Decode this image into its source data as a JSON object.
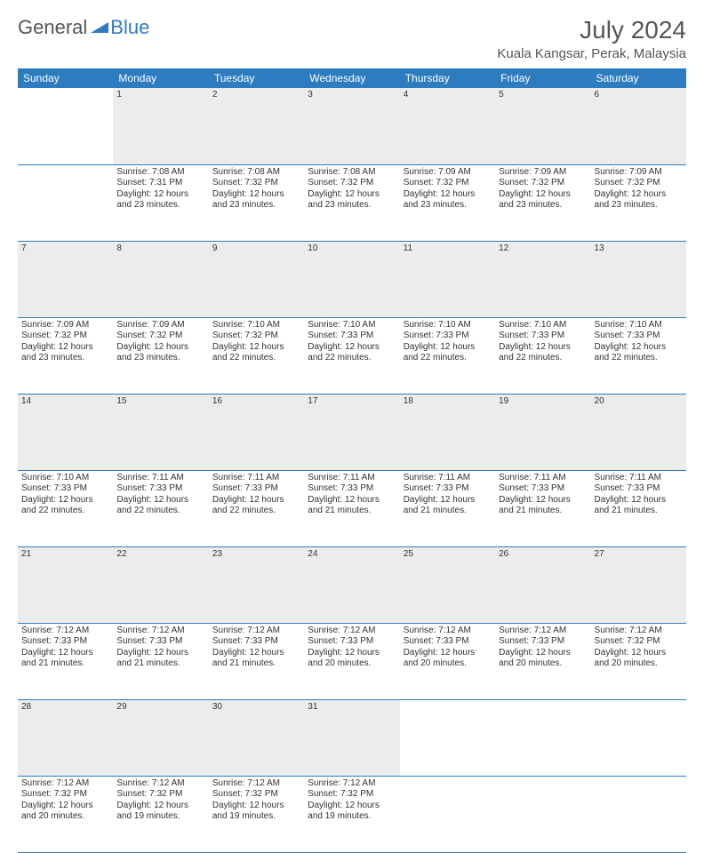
{
  "brand": {
    "part1": "General",
    "part2": "Blue"
  },
  "title": "July 2024",
  "location": "Kuala Kangsar, Perak, Malaysia",
  "colors": {
    "headerBg": "#2e7cc0",
    "headerText": "#ffffff",
    "dayNumBg": "#ececec",
    "ruleColor": "#2e7cc0",
    "bodyText": "#333333"
  },
  "weekdays": [
    "Sunday",
    "Monday",
    "Tuesday",
    "Wednesday",
    "Thursday",
    "Friday",
    "Saturday"
  ],
  "weeks": [
    [
      null,
      {
        "n": "1",
        "sr": "7:08 AM",
        "ss": "7:31 PM",
        "dl": "12 hours and 23 minutes."
      },
      {
        "n": "2",
        "sr": "7:08 AM",
        "ss": "7:32 PM",
        "dl": "12 hours and 23 minutes."
      },
      {
        "n": "3",
        "sr": "7:08 AM",
        "ss": "7:32 PM",
        "dl": "12 hours and 23 minutes."
      },
      {
        "n": "4",
        "sr": "7:09 AM",
        "ss": "7:32 PM",
        "dl": "12 hours and 23 minutes."
      },
      {
        "n": "5",
        "sr": "7:09 AM",
        "ss": "7:32 PM",
        "dl": "12 hours and 23 minutes."
      },
      {
        "n": "6",
        "sr": "7:09 AM",
        "ss": "7:32 PM",
        "dl": "12 hours and 23 minutes."
      }
    ],
    [
      {
        "n": "7",
        "sr": "7:09 AM",
        "ss": "7:32 PM",
        "dl": "12 hours and 23 minutes."
      },
      {
        "n": "8",
        "sr": "7:09 AM",
        "ss": "7:32 PM",
        "dl": "12 hours and 23 minutes."
      },
      {
        "n": "9",
        "sr": "7:10 AM",
        "ss": "7:32 PM",
        "dl": "12 hours and 22 minutes."
      },
      {
        "n": "10",
        "sr": "7:10 AM",
        "ss": "7:33 PM",
        "dl": "12 hours and 22 minutes."
      },
      {
        "n": "11",
        "sr": "7:10 AM",
        "ss": "7:33 PM",
        "dl": "12 hours and 22 minutes."
      },
      {
        "n": "12",
        "sr": "7:10 AM",
        "ss": "7:33 PM",
        "dl": "12 hours and 22 minutes."
      },
      {
        "n": "13",
        "sr": "7:10 AM",
        "ss": "7:33 PM",
        "dl": "12 hours and 22 minutes."
      }
    ],
    [
      {
        "n": "14",
        "sr": "7:10 AM",
        "ss": "7:33 PM",
        "dl": "12 hours and 22 minutes."
      },
      {
        "n": "15",
        "sr": "7:11 AM",
        "ss": "7:33 PM",
        "dl": "12 hours and 22 minutes."
      },
      {
        "n": "16",
        "sr": "7:11 AM",
        "ss": "7:33 PM",
        "dl": "12 hours and 22 minutes."
      },
      {
        "n": "17",
        "sr": "7:11 AM",
        "ss": "7:33 PM",
        "dl": "12 hours and 21 minutes."
      },
      {
        "n": "18",
        "sr": "7:11 AM",
        "ss": "7:33 PM",
        "dl": "12 hours and 21 minutes."
      },
      {
        "n": "19",
        "sr": "7:11 AM",
        "ss": "7:33 PM",
        "dl": "12 hours and 21 minutes."
      },
      {
        "n": "20",
        "sr": "7:11 AM",
        "ss": "7:33 PM",
        "dl": "12 hours and 21 minutes."
      }
    ],
    [
      {
        "n": "21",
        "sr": "7:12 AM",
        "ss": "7:33 PM",
        "dl": "12 hours and 21 minutes."
      },
      {
        "n": "22",
        "sr": "7:12 AM",
        "ss": "7:33 PM",
        "dl": "12 hours and 21 minutes."
      },
      {
        "n": "23",
        "sr": "7:12 AM",
        "ss": "7:33 PM",
        "dl": "12 hours and 21 minutes."
      },
      {
        "n": "24",
        "sr": "7:12 AM",
        "ss": "7:33 PM",
        "dl": "12 hours and 20 minutes."
      },
      {
        "n": "25",
        "sr": "7:12 AM",
        "ss": "7:33 PM",
        "dl": "12 hours and 20 minutes."
      },
      {
        "n": "26",
        "sr": "7:12 AM",
        "ss": "7:33 PM",
        "dl": "12 hours and 20 minutes."
      },
      {
        "n": "27",
        "sr": "7:12 AM",
        "ss": "7:32 PM",
        "dl": "12 hours and 20 minutes."
      }
    ],
    [
      {
        "n": "28",
        "sr": "7:12 AM",
        "ss": "7:32 PM",
        "dl": "12 hours and 20 minutes."
      },
      {
        "n": "29",
        "sr": "7:12 AM",
        "ss": "7:32 PM",
        "dl": "12 hours and 19 minutes."
      },
      {
        "n": "30",
        "sr": "7:12 AM",
        "ss": "7:32 PM",
        "dl": "12 hours and 19 minutes."
      },
      {
        "n": "31",
        "sr": "7:12 AM",
        "ss": "7:32 PM",
        "dl": "12 hours and 19 minutes."
      },
      null,
      null,
      null
    ]
  ],
  "labels": {
    "sunrise": "Sunrise:",
    "sunset": "Sunset:",
    "daylight": "Daylight:"
  }
}
